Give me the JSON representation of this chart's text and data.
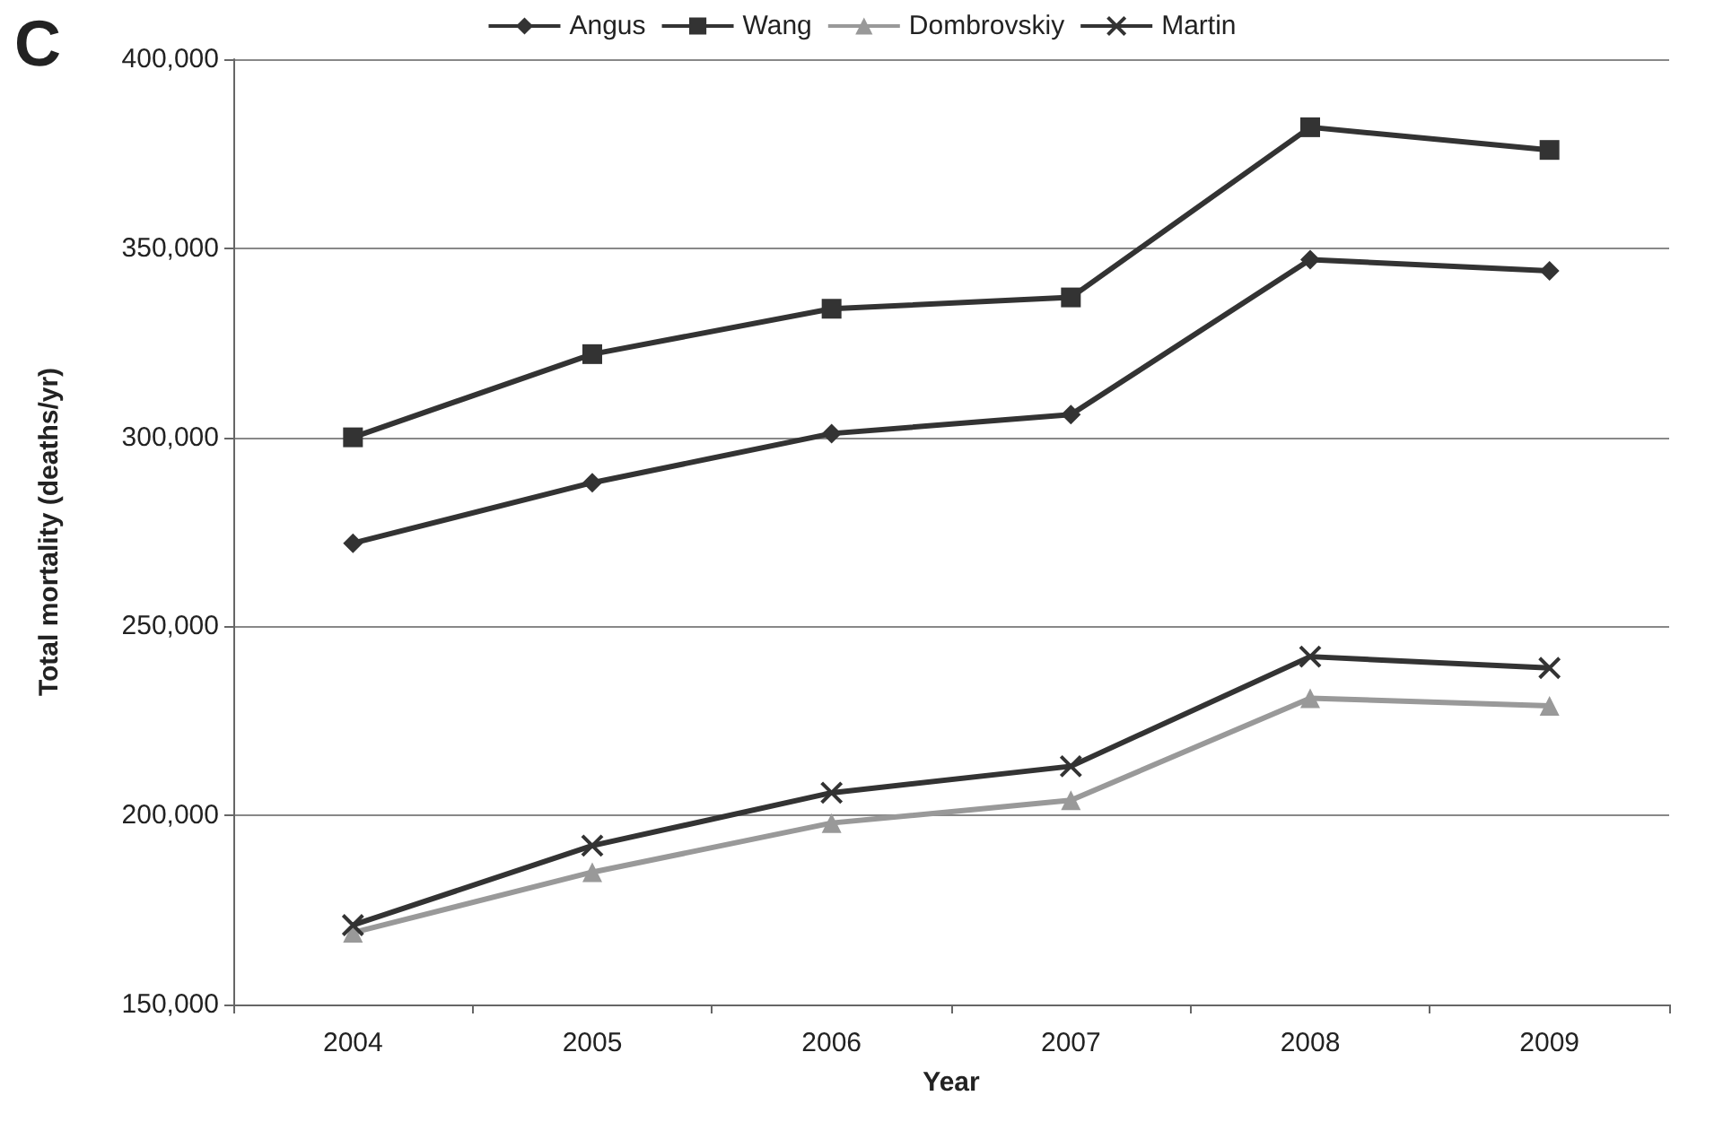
{
  "chart_data": {
    "type": "line",
    "annotations": [
      "C"
    ],
    "xlabel": "Year",
    "ylabel": "Total mortality (deaths/yr)",
    "categories": [
      "2004",
      "2005",
      "2006",
      "2007",
      "2008",
      "2009"
    ],
    "series": [
      {
        "name": "Angus",
        "color": "#333333",
        "marker": "diamond",
        "values": [
          272000,
          288000,
          301000,
          306000,
          347000,
          344000
        ]
      },
      {
        "name": "Wang",
        "color": "#333333",
        "marker": "square",
        "values": [
          300000,
          322000,
          334000,
          337000,
          382000,
          376000
        ]
      },
      {
        "name": "Dombrovskiy",
        "color": "#999999",
        "marker": "triangle",
        "values": [
          169000,
          185000,
          198000,
          204000,
          231000,
          229000
        ]
      },
      {
        "name": "Martin",
        "color": "#333333",
        "marker": "cross",
        "values": [
          171000,
          192000,
          206000,
          213000,
          242000,
          239000
        ]
      }
    ],
    "ylim": [
      150000,
      400000
    ],
    "yticks": [
      {
        "value": 150000,
        "label": "150,000"
      },
      {
        "value": 200000,
        "label": "200,000"
      },
      {
        "value": 250000,
        "label": "250,000"
      },
      {
        "value": 300000,
        "label": "300,000"
      },
      {
        "value": 350000,
        "label": "350,000"
      },
      {
        "value": 400000,
        "label": "400,000"
      }
    ],
    "grid": "y",
    "legend": "top",
    "line_style": "solid"
  }
}
